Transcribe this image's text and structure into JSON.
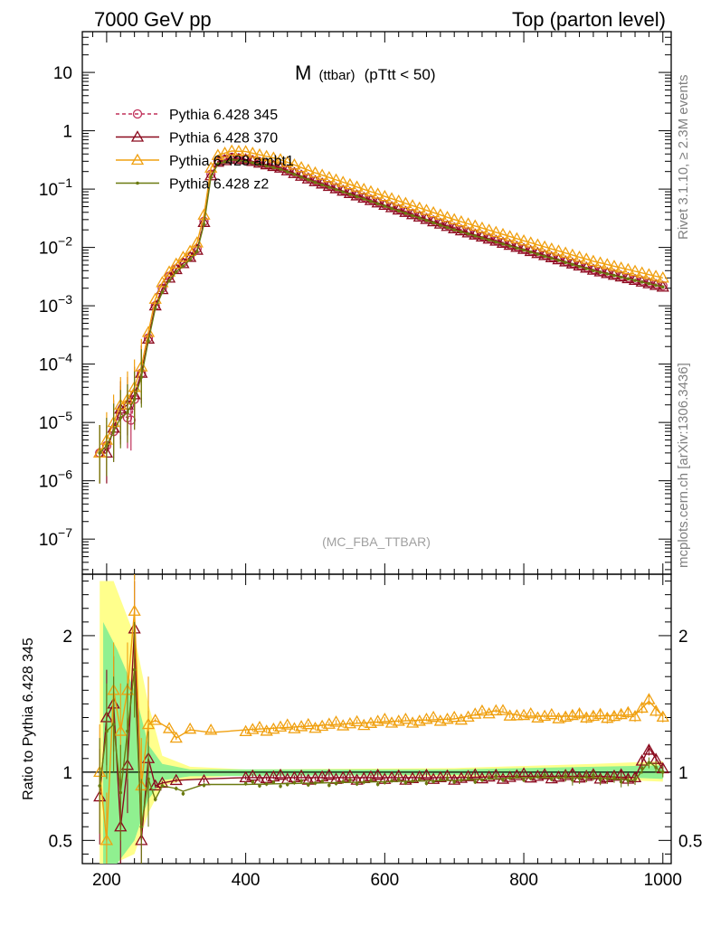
{
  "header": {
    "left": "7000 GeV pp",
    "right": "Top (parton level)"
  },
  "side_text": {
    "rivet": "Rivet 3.1.10, ≥ 2.3M events",
    "mcplots": "mcplots.cern.ch [arXiv:1306.3436]"
  },
  "chart_data": [
    {
      "type": "line",
      "title_main": "M",
      "title_sub": "(ttbar)",
      "title_cut": "(pTtt < 50)",
      "watermark": "(MC_FBA_TTBAR)",
      "yscale": "log",
      "ylim": [
        2.5e-08,
        50
      ],
      "xlim": [
        165,
        1012
      ],
      "y_ticks": [
        {
          "v": 10,
          "t": "10"
        },
        {
          "v": 1,
          "t": "1"
        },
        {
          "v": 0.1,
          "b": "10",
          "e": "−1"
        },
        {
          "v": 0.01,
          "b": "10",
          "e": "−2"
        },
        {
          "v": 0.001,
          "b": "10",
          "e": "−3"
        },
        {
          "v": 0.0001,
          "b": "10",
          "e": "−4"
        },
        {
          "v": 1e-05,
          "b": "10",
          "e": "−5"
        },
        {
          "v": 1e-06,
          "b": "10",
          "e": "−6"
        },
        {
          "v": 1e-07,
          "b": "10",
          "e": "−7"
        }
      ],
      "legend_position": "top-left",
      "series": [
        {
          "name": "Pythia 6.428 345",
          "color": "#c0305a",
          "marker": "circle",
          "dash": true,
          "points": [
            [
              190,
              3e-06
            ],
            [
              200,
              4e-06
            ],
            [
              210,
              7e-06
            ],
            [
              220,
              1.4e-05
            ],
            [
              230,
              1.2e-05
            ],
            [
              235,
              1.1e-05
            ],
            [
              240,
              2.5e-05
            ],
            [
              250,
              7e-05
            ],
            [
              260,
              0.00028
            ],
            [
              270,
              0.001
            ],
            [
              280,
              0.002
            ],
            [
              290,
              0.0032
            ],
            [
              300,
              0.0043
            ],
            [
              310,
              0.0055
            ],
            [
              320,
              0.007
            ],
            [
              330,
              0.0095
            ],
            [
              340,
              0.028
            ],
            [
              350,
              0.18
            ],
            [
              360,
              0.3
            ],
            [
              380,
              0.35
            ],
            [
              400,
              0.33
            ],
            [
              450,
              0.24
            ],
            [
              500,
              0.14
            ],
            [
              600,
              0.055
            ],
            [
              700,
              0.022
            ],
            [
              800,
              0.0095
            ],
            [
              900,
              0.0042
            ],
            [
              1000,
              0.0022
            ]
          ]
        },
        {
          "name": "Pythia 6.428 370",
          "color": "#8b0a1e",
          "marker": "triangle",
          "dash": false,
          "points": [
            [
              190,
              3e-06
            ],
            [
              200,
              3e-06
            ],
            [
              210,
              8e-06
            ],
            [
              220,
              1.7e-05
            ],
            [
              230,
              2e-05
            ],
            [
              240,
              3e-05
            ],
            [
              250,
              7e-05
            ],
            [
              260,
              0.00027
            ],
            [
              270,
              0.001
            ],
            [
              280,
              0.0019
            ],
            [
              290,
              0.003
            ],
            [
              300,
              0.0042
            ],
            [
              310,
              0.0053
            ],
            [
              320,
              0.0068
            ],
            [
              330,
              0.009
            ],
            [
              340,
              0.027
            ],
            [
              350,
              0.17
            ],
            [
              360,
              0.29
            ],
            [
              380,
              0.33
            ],
            [
              400,
              0.32
            ],
            [
              450,
              0.23
            ],
            [
              500,
              0.135
            ],
            [
              600,
              0.053
            ],
            [
              700,
              0.021
            ],
            [
              800,
              0.0093
            ],
            [
              900,
              0.0041
            ],
            [
              1000,
              0.0021
            ]
          ]
        },
        {
          "name": "Pythia 6.428 ambt1",
          "color": "#f0a010",
          "marker": "triangle",
          "dash": false,
          "points": [
            [
              190,
              3e-06
            ],
            [
              200,
              5e-06
            ],
            [
              210,
              1e-05
            ],
            [
              220,
              2e-05
            ],
            [
              230,
              2.5e-05
            ],
            [
              240,
              4e-05
            ],
            [
              250,
              9e-05
            ],
            [
              260,
              0.00035
            ],
            [
              270,
              0.0013
            ],
            [
              280,
              0.0025
            ],
            [
              290,
              0.0038
            ],
            [
              300,
              0.0052
            ],
            [
              310,
              0.0068
            ],
            [
              320,
              0.0086
            ],
            [
              330,
              0.012
            ],
            [
              340,
              0.036
            ],
            [
              350,
              0.23
            ],
            [
              360,
              0.38
            ],
            [
              380,
              0.45
            ],
            [
              400,
              0.44
            ],
            [
              450,
              0.32
            ],
            [
              500,
              0.19
            ],
            [
              600,
              0.075
            ],
            [
              700,
              0.03
            ],
            [
              800,
              0.013
            ],
            [
              900,
              0.0058
            ],
            [
              1000,
              0.003
            ]
          ]
        },
        {
          "name": "Pythia 6.428 z2",
          "color": "#6b7a10",
          "marker": "dot",
          "dash": false,
          "points": [
            [
              190,
              3e-06
            ],
            [
              200,
              4e-06
            ],
            [
              210,
              7e-06
            ],
            [
              220,
              1.2e-05
            ],
            [
              230,
              1.5e-05
            ],
            [
              240,
              2.5e-05
            ],
            [
              250,
              6e-05
            ],
            [
              260,
              0.00025
            ],
            [
              270,
              0.0009
            ],
            [
              280,
              0.0017
            ],
            [
              290,
              0.0027
            ],
            [
              300,
              0.0038
            ],
            [
              310,
              0.0048
            ],
            [
              320,
              0.0062
            ],
            [
              330,
              0.0085
            ],
            [
              340,
              0.025
            ],
            [
              350,
              0.16
            ],
            [
              360,
              0.27
            ],
            [
              380,
              0.32
            ],
            [
              400,
              0.3
            ],
            [
              450,
              0.22
            ],
            [
              500,
              0.13
            ],
            [
              600,
              0.051
            ],
            [
              700,
              0.02
            ],
            [
              800,
              0.009
            ],
            [
              900,
              0.004
            ],
            [
              1000,
              0.0021
            ]
          ]
        }
      ]
    },
    {
      "type": "line",
      "ylabel": "Ratio to Pythia 6.428 345",
      "ylim": [
        0.33,
        2.45
      ],
      "xlim": [
        165,
        1012
      ],
      "x_ticks": [
        200,
        400,
        600,
        800,
        1000
      ],
      "y_ticks": [
        {
          "v": 0.5,
          "t": "0.5"
        },
        {
          "v": 1,
          "t": "1"
        },
        {
          "v": 2,
          "t": "2"
        }
      ],
      "reference": 1,
      "series": [
        {
          "name": "Pythia 6.428 370",
          "color": "#8b0a1e",
          "marker": "triangle",
          "points": [
            [
              190,
              0.82
            ],
            [
              200,
              1.4
            ],
            [
              210,
              1.5
            ],
            [
              220,
              0.6
            ],
            [
              230,
              1.05
            ],
            [
              240,
              2.05
            ],
            [
              250,
              0.5
            ],
            [
              260,
              1.1
            ],
            [
              270,
              0.9
            ],
            [
              280,
              0.92
            ],
            [
              300,
              0.94
            ],
            [
              340,
              0.95
            ],
            [
              400,
              0.96
            ],
            [
              500,
              0.96
            ],
            [
              600,
              0.96
            ],
            [
              700,
              0.96
            ],
            [
              800,
              0.97
            ],
            [
              900,
              0.97
            ],
            [
              960,
              0.96
            ],
            [
              980,
              1.18
            ],
            [
              1000,
              1.02
            ]
          ]
        },
        {
          "name": "Pythia 6.428 ambt1",
          "color": "#f0a010",
          "marker": "triangle",
          "points": [
            [
              190,
              1.0
            ],
            [
              200,
              0.5
            ],
            [
              210,
              1.6
            ],
            [
              220,
              1.3
            ],
            [
              230,
              1.6
            ],
            [
              240,
              2.18
            ],
            [
              250,
              0.9
            ],
            [
              260,
              1.35
            ],
            [
              270,
              1.38
            ],
            [
              290,
              1.32
            ],
            [
              300,
              1.25
            ],
            [
              320,
              1.31
            ],
            [
              350,
              1.29
            ],
            [
              400,
              1.31
            ],
            [
              500,
              1.34
            ],
            [
              600,
              1.37
            ],
            [
              700,
              1.39
            ],
            [
              760,
              1.45
            ],
            [
              800,
              1.41
            ],
            [
              900,
              1.41
            ],
            [
              960,
              1.42
            ],
            [
              980,
              1.52
            ],
            [
              1000,
              1.41
            ]
          ]
        },
        {
          "name": "Pythia 6.428 z2",
          "color": "#6b7a10",
          "marker": "dot",
          "points": [
            [
              190,
              0.9
            ],
            [
              200,
              1.3
            ],
            [
              210,
              1.35
            ],
            [
              220,
              0.85
            ],
            [
              230,
              1.3
            ],
            [
              240,
              1.75
            ],
            [
              250,
              0.6
            ],
            [
              260,
              0.95
            ],
            [
              270,
              0.8
            ],
            [
              280,
              0.9
            ],
            [
              300,
              0.88
            ],
            [
              310,
              0.86
            ],
            [
              340,
              0.91
            ],
            [
              400,
              0.91
            ],
            [
              500,
              0.92
            ],
            [
              600,
              0.93
            ],
            [
              700,
              0.94
            ],
            [
              800,
              0.96
            ],
            [
              900,
              0.96
            ],
            [
              960,
              0.94
            ],
            [
              980,
              1.08
            ],
            [
              1000,
              0.99
            ]
          ]
        }
      ]
    }
  ]
}
